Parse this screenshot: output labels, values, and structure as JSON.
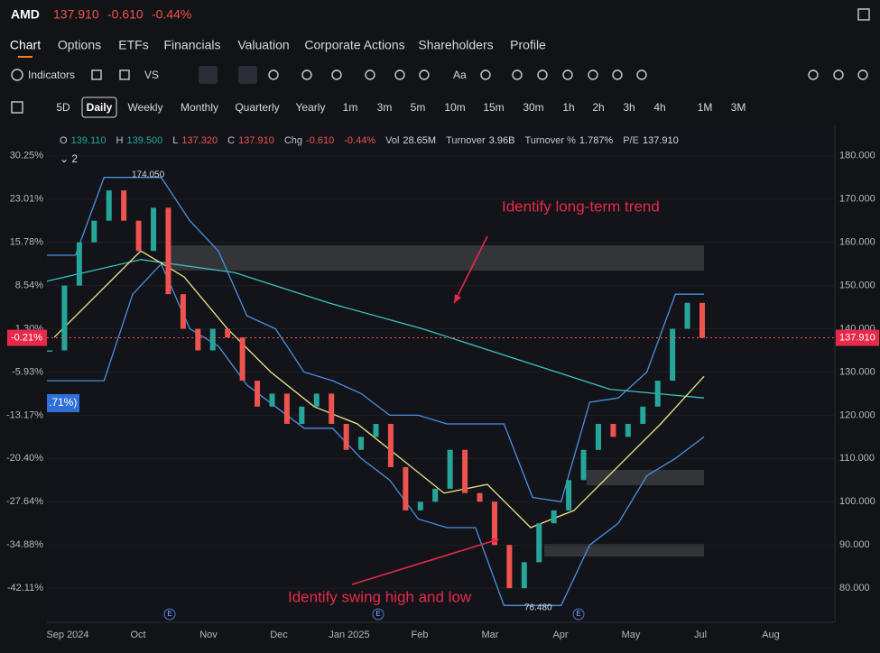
{
  "header": {
    "symbol": "AMD",
    "price": "137.910",
    "change": "-0.610",
    "change_pct": "-0.44%"
  },
  "tabs": [
    "Chart",
    "Options",
    "ETFs",
    "Financials",
    "Valuation",
    "Corporate Actions",
    "Shareholders",
    "Profile"
  ],
  "toolbar": {
    "indicators": "Indicators",
    "vs": "VS",
    "text_tool": "Aa"
  },
  "intervals": [
    "5D",
    "Daily",
    "Weekly",
    "Monthly",
    "Quarterly",
    "Yearly",
    "1m",
    "3m",
    "5m",
    "10m",
    "15m",
    "30m",
    "1h",
    "2h",
    "3h",
    "4h",
    "1M",
    "3M"
  ],
  "quote_line": [
    {
      "label": "O",
      "value": "139.110",
      "color": "#26a69a"
    },
    {
      "label": "H",
      "value": "139.500",
      "color": "#26a69a"
    },
    {
      "label": "L",
      "value": "137.320",
      "color": "#ef5350"
    },
    {
      "label": "C",
      "value": "137.910",
      "color": "#ef5350"
    },
    {
      "label": "Chg",
      "value": "-0.610",
      "color": "#ef5350"
    },
    {
      "label": "",
      "value": "-0.44%",
      "color": "#ef5350"
    },
    {
      "label": "Vol",
      "value": "28.65M",
      "color": "#d6d8dd"
    },
    {
      "label": "Turnover",
      "value": "3.96B",
      "color": "#d6d8dd"
    },
    {
      "label": "Turnover %",
      "value": "1.787%",
      "color": "#d6d8dd"
    },
    {
      "label": "P/E",
      "value": "137.910",
      "color": "#d6d8dd"
    }
  ],
  "indicator_count": "2",
  "chart": {
    "type": "candlestick",
    "closes": [
      135,
      150,
      160,
      165,
      172,
      165,
      158,
      168,
      148,
      140,
      135,
      140,
      138,
      128,
      122,
      125,
      118,
      122,
      125,
      118,
      112,
      115,
      118,
      108,
      98,
      100,
      103,
      112,
      102,
      100,
      90,
      80,
      86,
      95,
      98,
      105,
      112,
      118,
      115,
      118,
      122,
      128,
      140,
      146,
      137.91
    ],
    "ma_short": {
      "color": "#f2e58a",
      "values": [
        138,
        148,
        158,
        152,
        140,
        130,
        122,
        118,
        110,
        102,
        104,
        94,
        98,
        108,
        118,
        129
      ]
    },
    "ma_long": {
      "color": "#3cc4c0",
      "values": [
        151,
        156,
        153,
        146,
        140,
        133,
        126,
        124
      ]
    },
    "channel_upper": {
      "color": "#4a90e2",
      "values": [
        157,
        157,
        175,
        175,
        175,
        165,
        158,
        143,
        140,
        130,
        128,
        125,
        120,
        120,
        118,
        118,
        118,
        101,
        100,
        123,
        124,
        130,
        148,
        148
      ]
    },
    "channel_lower": {
      "color": "#4a90e2",
      "values": [
        128,
        128,
        128,
        148,
        155,
        140,
        136,
        127,
        122,
        117,
        117,
        110,
        105,
        96,
        94,
        94,
        76,
        76,
        76,
        90,
        95,
        106,
        110,
        115
      ]
    },
    "ylim": [
      72,
      186.4
    ],
    "yticks": [
      {
        "value": 180,
        "label": "180.000"
      },
      {
        "value": 170,
        "label": "170.000"
      },
      {
        "value": 160,
        "label": "160.000"
      },
      {
        "value": 150,
        "label": "150.000"
      },
      {
        "value": 140,
        "label": "140.000"
      },
      {
        "value": 130,
        "label": "130.000"
      },
      {
        "value": 120,
        "label": "120.000"
      },
      {
        "value": 110,
        "label": "110.000"
      },
      {
        "value": 100,
        "label": "100.000"
      },
      {
        "value": 90,
        "label": "90.000"
      },
      {
        "value": 80,
        "label": "80.000"
      }
    ],
    "pct_labels": [
      "30.25%",
      "23.01%",
      "15.78%",
      "8.54%",
      "1.30%",
      "-5.93%",
      "-13.17%",
      "-20.40%",
      "-27.64%",
      "-34.88%",
      "-42.11%"
    ],
    "x_labels": [
      "Sep 2024",
      "Oct",
      "Nov",
      "Dec",
      "Jan 2025",
      "Feb",
      "Mar",
      "Apr",
      "May",
      "Jul",
      "Aug"
    ],
    "last_price": {
      "value": 137.91,
      "label": "137.910"
    },
    "last_pct": "-0.21%",
    "cut_label": ".71%)",
    "high_label": "174.050",
    "low_label": "76.480",
    "earnings_marker": "E",
    "annotations": [
      "Identify long-term trend",
      "Identify swing high and low"
    ]
  }
}
